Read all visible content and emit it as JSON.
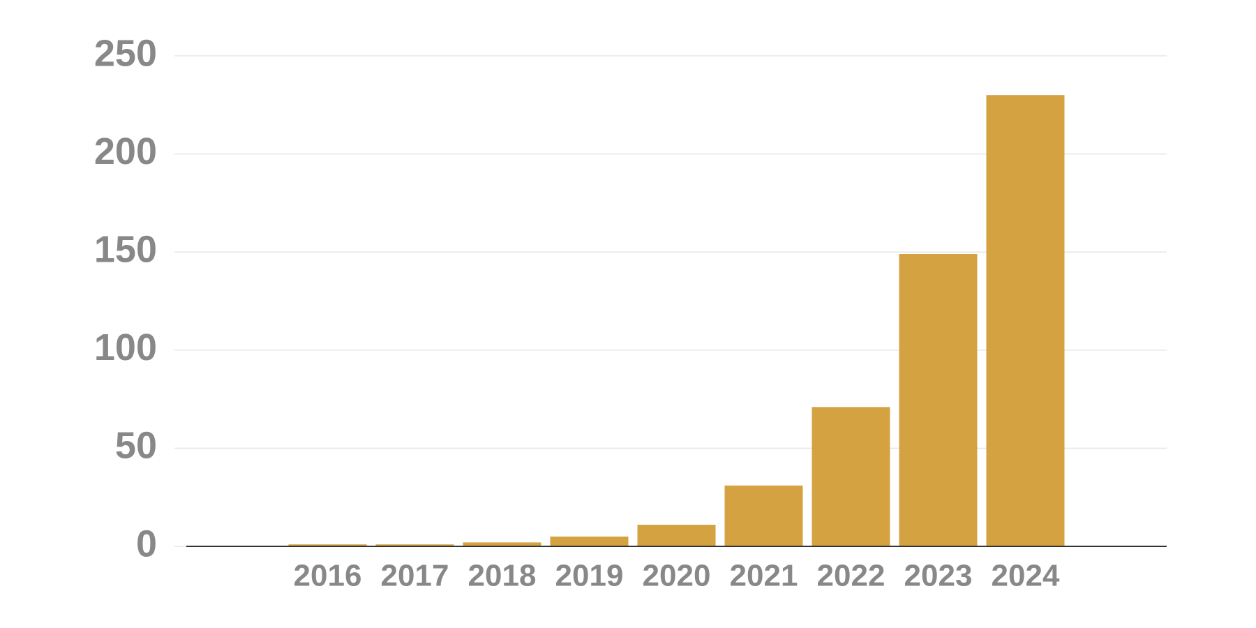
{
  "chart_data": {
    "type": "bar",
    "categories": [
      "2016",
      "2017",
      "2018",
      "2019",
      "2020",
      "2021",
      "2022",
      "2023",
      "2024"
    ],
    "values": [
      1,
      1,
      2,
      5,
      11,
      31,
      71,
      149,
      230
    ],
    "color": "#d4a241",
    "ylim": [
      0,
      250
    ],
    "yticks": [
      0,
      50,
      100,
      150,
      200,
      250
    ],
    "grid": true
  }
}
